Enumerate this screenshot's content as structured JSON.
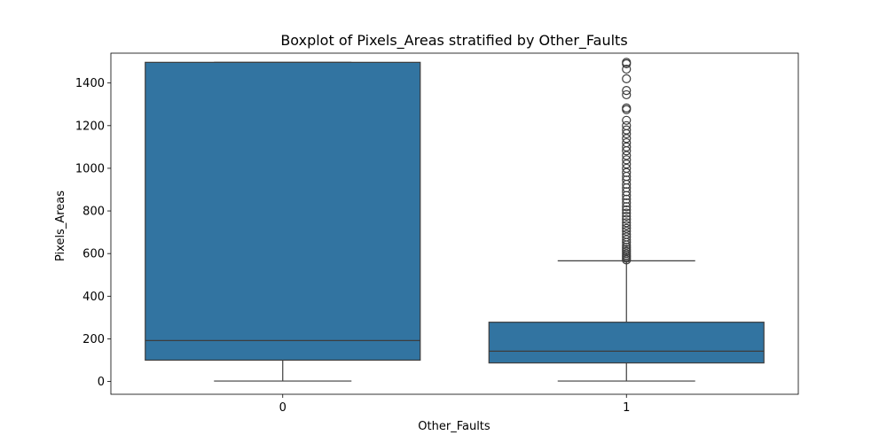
{
  "chart_data": {
    "type": "box",
    "title": "Boxplot of Pixels_Areas stratified by Other_Faults",
    "xlabel": "Other_Faults",
    "ylabel": "Pixels_Areas",
    "ylim": [
      -60,
      1540
    ],
    "yticks": [
      0,
      200,
      400,
      600,
      800,
      1000,
      1200,
      1400
    ],
    "grid": false,
    "legend": "none",
    "box_color": "#3274a1",
    "line_color": "#3d3d3d",
    "categories": [
      "0",
      "1"
    ],
    "boxes": [
      {
        "category": "0",
        "whisker_low": 2,
        "q1": 100,
        "median": 192,
        "q3": 1497,
        "whisker_high": 1497,
        "outliers": []
      },
      {
        "category": "1",
        "whisker_low": 2,
        "q1": 87,
        "median": 142,
        "q3": 278,
        "whisker_high": 566,
        "outliers": [
          570,
          578,
          585,
          592,
          600,
          610,
          620,
          630,
          640,
          652,
          665,
          678,
          690,
          705,
          718,
          732,
          745,
          760,
          775,
          790,
          805,
          820,
          838,
          855,
          872,
          890,
          908,
          925,
          945,
          962,
          980,
          1000,
          1020,
          1040,
          1060,
          1082,
          1100,
          1120,
          1140,
          1162,
          1180,
          1200,
          1225,
          1275,
          1283,
          1345,
          1365,
          1420,
          1465,
          1490,
          1497
        ]
      }
    ]
  }
}
